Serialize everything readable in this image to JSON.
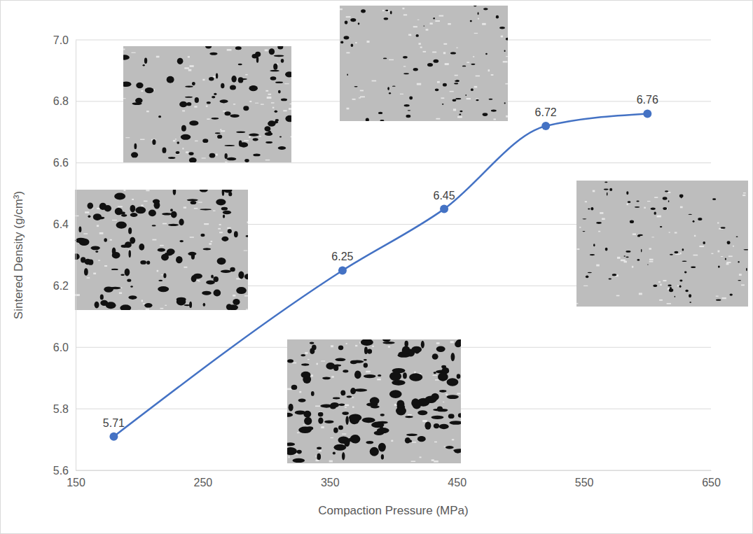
{
  "chart_data": {
    "type": "line",
    "x_label": "Compaction Pressure (MPa)",
    "y_label": "Sintered Density (g/cm³)",
    "x": [
      180,
      360,
      440,
      520,
      600
    ],
    "values": [
      5.71,
      6.25,
      6.45,
      6.72,
      6.76
    ],
    "color": "#4472c4",
    "marker": "circle",
    "line_style": "smooth",
    "data_labels": true,
    "grid": true,
    "xlim": [
      150,
      650
    ],
    "xticks": [
      150,
      250,
      350,
      450,
      550,
      650
    ],
    "ylim": [
      5.6,
      7.0
    ],
    "yticks": [
      5.6,
      5.8,
      {
        "value": 6,
        "label": "6.0"
      },
      6.2,
      6.4,
      6.6,
      6.8,
      {
        "value": 7,
        "label": "7.0"
      }
    ]
  }
}
